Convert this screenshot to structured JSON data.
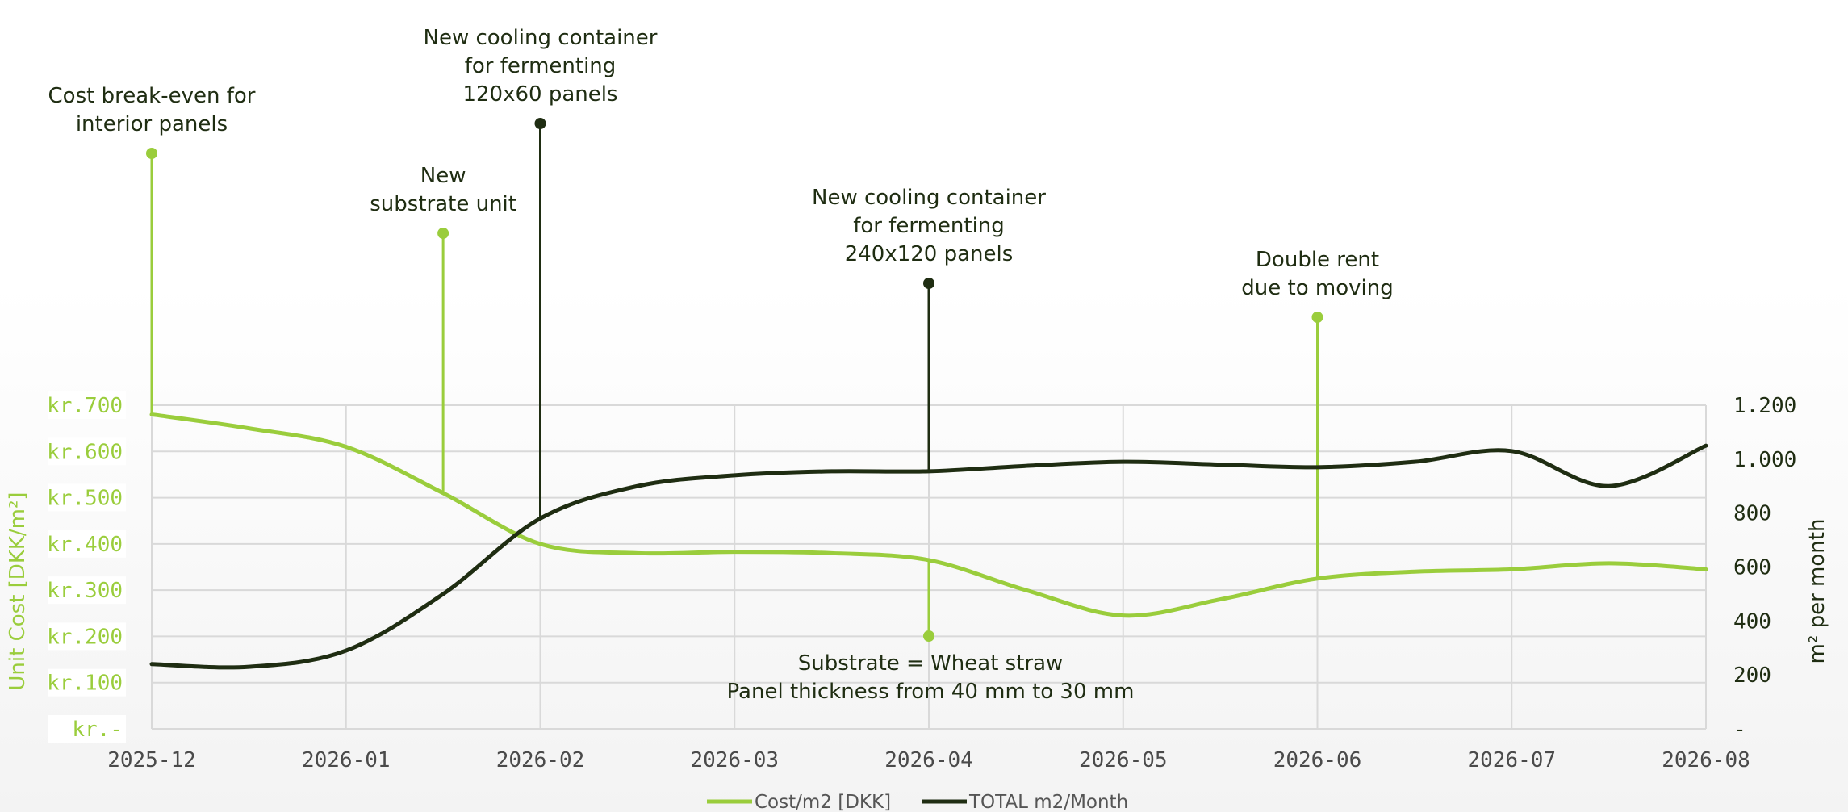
{
  "chart_data": {
    "type": "line",
    "x": [
      "2025-12",
      "2026-01",
      "2026-02",
      "2026-03",
      "2026-04",
      "2026-05",
      "2026-06",
      "2026-07",
      "2026-08"
    ],
    "series": [
      {
        "name": "Cost/m2 [DKK]",
        "axis": "left",
        "color": "#9acd3c",
        "points": [
          [
            0,
            680
          ],
          [
            0.5,
            650
          ],
          [
            1,
            610
          ],
          [
            1.5,
            510
          ],
          [
            2,
            400
          ],
          [
            2.5,
            380
          ],
          [
            3,
            383
          ],
          [
            3.5,
            380
          ],
          [
            4,
            365
          ],
          [
            4.5,
            300
          ],
          [
            5,
            245
          ],
          [
            5.5,
            280
          ],
          [
            6,
            325
          ],
          [
            6.5,
            340
          ],
          [
            7,
            345
          ],
          [
            7.5,
            358
          ],
          [
            8,
            345
          ]
        ]
      },
      {
        "name": "TOTAL m2/Month",
        "axis": "right",
        "color": "#1f2d12",
        "points": [
          [
            0,
            240
          ],
          [
            0.5,
            230
          ],
          [
            1,
            290
          ],
          [
            1.5,
            500
          ],
          [
            2,
            780
          ],
          [
            2.5,
            900
          ],
          [
            3,
            940
          ],
          [
            3.5,
            955
          ],
          [
            4,
            955
          ],
          [
            4.5,
            975
          ],
          [
            5,
            990
          ],
          [
            5.5,
            980
          ],
          [
            6,
            970
          ],
          [
            6.5,
            990
          ],
          [
            7,
            1030
          ],
          [
            7.5,
            900
          ],
          [
            8,
            1050
          ]
        ]
      }
    ],
    "y_left": {
      "label": "Unit Cost [DKK/m²]",
      "ticks": [
        "kr.-",
        "kr.100",
        "kr.200",
        "kr.300",
        "kr.400",
        "kr.500",
        "kr.600",
        "kr.700"
      ],
      "range": [
        0,
        700
      ]
    },
    "y_right": {
      "label": "m² per month",
      "ticks": [
        "-",
        "200",
        "400",
        "600",
        "800",
        "1.000",
        "1.200"
      ],
      "range": [
        0,
        1200
      ]
    },
    "grid": true,
    "legend": "bottom-center",
    "annotations": [
      {
        "x": 0,
        "series": 0,
        "color": "#9acd3c",
        "lines": [
          "Cost break-even for",
          "interior panels"
        ]
      },
      {
        "x": 1.5,
        "series": 0,
        "color": "#9acd3c",
        "lines": [
          "New",
          "substrate unit"
        ]
      },
      {
        "x": 2,
        "series": 1,
        "color": "#1f2d12",
        "lines": [
          "New cooling container",
          "for fermenting",
          "120x60 panels"
        ]
      },
      {
        "x": 4,
        "series": 1,
        "color": "#1f2d12",
        "lines": [
          "New cooling container",
          "for fermenting",
          "240x120 panels"
        ]
      },
      {
        "x": 6,
        "series": 0,
        "color": "#9acd3c",
        "lines": [
          "Double rent",
          "due to moving"
        ]
      },
      {
        "x": 4,
        "series": 0,
        "color": "#9acd3c",
        "lines": [
          "Substrate = Wheat straw",
          "Panel thickness from 40 mm to 30 mm"
        ],
        "below": true
      }
    ]
  }
}
